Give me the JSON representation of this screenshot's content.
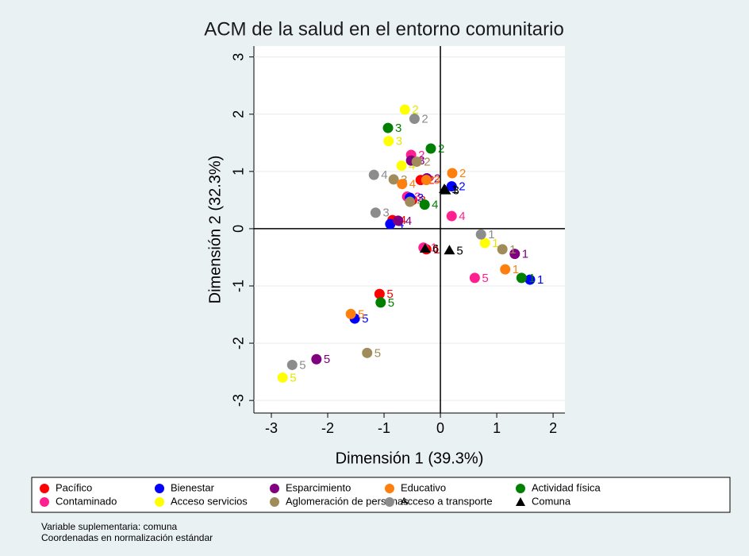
{
  "chart_data": {
    "type": "scatter",
    "title": "ACM de la salud en el entorno comunitario",
    "x_label": "Dimensión 1 (39.3%)",
    "y_label": "Dimensión 2 (32.3%)",
    "xlim": [
      -3.31,
      2.21
    ],
    "ylim": [
      -3.22,
      3.19
    ],
    "xticks": [
      -3,
      -2,
      -1,
      0,
      1,
      2
    ],
    "yticks": [
      -3,
      -2,
      -1,
      0,
      1,
      2,
      3
    ],
    "grid": true,
    "legend": "bottom",
    "series": [
      {
        "name": "Pacífico",
        "color": "#ff0000",
        "marker": "circle",
        "x": [
          -0.25,
          -0.35,
          -0.5,
          -0.85,
          -1.08
        ],
        "y": [
          -0.36,
          0.85,
          0.5,
          0.15,
          -1.14
        ],
        "labels": [
          "1",
          "2",
          "3",
          "4",
          "5"
        ]
      },
      {
        "name": "Contaminado",
        "color": "#ff1f8f",
        "marker": "circle",
        "x": [
          -0.3,
          -0.52,
          -0.59,
          0.2,
          0.61
        ],
        "y": [
          -0.33,
          1.29,
          0.56,
          0.22,
          -0.86
        ],
        "labels": [
          "1",
          "2",
          "3",
          "4",
          "5"
        ]
      },
      {
        "name": "Bienestar",
        "color": "#0000ff",
        "marker": "circle",
        "x": [
          1.59,
          0.2,
          -0.54,
          -0.89,
          -1.52
        ],
        "y": [
          -0.89,
          0.74,
          0.54,
          0.08,
          -1.57
        ],
        "labels": [
          "1",
          "2",
          "3",
          "4",
          "5"
        ]
      },
      {
        "name": "Acceso servicios",
        "color": "#ffff00",
        "marker": "circle",
        "x": [
          0.79,
          -0.63,
          -0.92,
          -0.69,
          -2.8
        ],
        "y": [
          -0.25,
          2.08,
          1.53,
          1.1,
          -2.6
        ],
        "labels": [
          "1",
          "2",
          "3",
          "4",
          "5"
        ]
      },
      {
        "name": "Esparcimiento",
        "color": "#800080",
        "marker": "circle",
        "x": [
          1.32,
          -0.24,
          -0.52,
          -0.75,
          -2.2
        ],
        "y": [
          -0.44,
          0.88,
          1.19,
          0.14,
          -2.28
        ],
        "labels": [
          "1",
          "2",
          "3",
          "4",
          "5"
        ]
      },
      {
        "name": "Aglomeración de personas",
        "color": "#a08c5a",
        "marker": "circle",
        "x": [
          1.1,
          -0.42,
          -0.83,
          -0.54,
          -1.3
        ],
        "y": [
          -0.36,
          1.17,
          0.86,
          0.47,
          -2.17
        ],
        "labels": [
          "1",
          "2",
          "3",
          "4",
          "5"
        ]
      },
      {
        "name": "Educativo",
        "color": "#ff7f0e",
        "marker": "circle",
        "x": [
          1.15,
          0.21,
          -0.25,
          -0.68,
          -1.59
        ],
        "y": [
          -0.71,
          0.97,
          0.85,
          0.78,
          -1.49
        ],
        "labels": [
          "1",
          "2",
          "3",
          "4",
          "5"
        ]
      },
      {
        "name": "Acceso a transporte",
        "color": "#8c8c8c",
        "marker": "circle",
        "x": [
          0.72,
          -0.46,
          -1.15,
          -1.18,
          -2.63
        ],
        "y": [
          -0.1,
          1.92,
          0.28,
          0.94,
          -2.38
        ],
        "labels": [
          "1",
          "2",
          "3",
          "4",
          "5"
        ]
      },
      {
        "name": "Actividad física",
        "color": "#008000",
        "marker": "circle",
        "x": [
          1.44,
          -0.17,
          -0.93,
          -0.28,
          -1.06
        ],
        "y": [
          -0.86,
          1.4,
          1.76,
          0.42,
          -1.29
        ],
        "labels": [
          "1",
          "2",
          "3",
          "4",
          "5"
        ]
      },
      {
        "name": "Comuna",
        "color": "#000000",
        "marker": "triangle",
        "x": [
          0.07,
          0.09,
          -0.27,
          0.16
        ],
        "y": [
          0.69,
          0.67,
          -0.35,
          -0.38
        ],
        "labels": [
          "1",
          "3",
          "6",
          "5"
        ]
      }
    ],
    "notes": [
      "Variable suplementaria: comuna",
      "Coordenadas en normalización estándar"
    ]
  }
}
